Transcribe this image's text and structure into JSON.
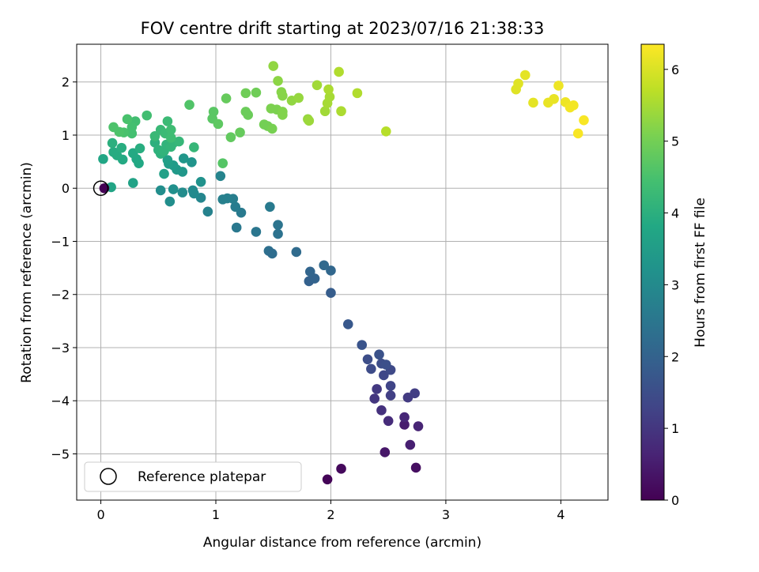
{
  "chart_data": {
    "type": "scatter",
    "title": "FOV centre drift starting at 2023/07/16 21:38:33",
    "xlabel": "Angular distance from reference (arcmin)",
    "ylabel": "Rotation from reference (arcmin)",
    "xlim": [
      -0.21,
      4.41
    ],
    "ylim": [
      -5.87,
      2.71
    ],
    "xticks": [
      0,
      1,
      2,
      3,
      4
    ],
    "yticks": [
      -5,
      -4,
      -3,
      -2,
      -1,
      0,
      1,
      2
    ],
    "grid": true,
    "legend": {
      "placement": "lower-left",
      "entries": [
        "Reference platepar"
      ]
    },
    "colorbar": {
      "label": "Hours from first FF file",
      "range": [
        0,
        6.35
      ],
      "ticks": [
        0,
        1,
        2,
        3,
        4,
        5,
        6
      ],
      "colormap": "viridis"
    },
    "reference_point": {
      "x": 0,
      "y": 0
    },
    "points": [
      {
        "x": 1.97,
        "y": -5.48,
        "h": 0.05
      },
      {
        "x": 2.09,
        "y": -5.28,
        "h": 0.15
      },
      {
        "x": 2.74,
        "y": -5.26,
        "h": 0.25
      },
      {
        "x": 2.47,
        "y": -4.97,
        "h": 0.4
      },
      {
        "x": 2.69,
        "y": -4.83,
        "h": 0.55
      },
      {
        "x": 2.64,
        "y": -4.45,
        "h": 0.5
      },
      {
        "x": 2.76,
        "y": -4.48,
        "h": 0.65
      },
      {
        "x": 2.5,
        "y": -4.38,
        "h": 0.8
      },
      {
        "x": 2.44,
        "y": -4.18,
        "h": 0.9
      },
      {
        "x": 2.64,
        "y": -4.31,
        "h": 0.7
      },
      {
        "x": 2.38,
        "y": -3.96,
        "h": 1.0
      },
      {
        "x": 2.4,
        "y": -3.78,
        "h": 1.05
      },
      {
        "x": 2.67,
        "y": -3.94,
        "h": 1.1
      },
      {
        "x": 2.73,
        "y": -3.86,
        "h": 1.15
      },
      {
        "x": 2.52,
        "y": -3.9,
        "h": 1.2
      },
      {
        "x": 2.52,
        "y": -3.72,
        "h": 1.3
      },
      {
        "x": 2.46,
        "y": -3.52,
        "h": 1.35
      },
      {
        "x": 2.52,
        "y": -3.42,
        "h": 1.4
      },
      {
        "x": 2.35,
        "y": -3.4,
        "h": 1.45
      },
      {
        "x": 2.44,
        "y": -3.3,
        "h": 1.5
      },
      {
        "x": 2.32,
        "y": -3.22,
        "h": 1.5
      },
      {
        "x": 2.48,
        "y": -3.32,
        "h": 1.55
      },
      {
        "x": 2.42,
        "y": -3.13,
        "h": 1.6
      },
      {
        "x": 2.27,
        "y": -2.95,
        "h": 1.65
      },
      {
        "x": 2.15,
        "y": -2.56,
        "h": 1.75
      },
      {
        "x": 2.0,
        "y": -1.97,
        "h": 1.85
      },
      {
        "x": 1.81,
        "y": -1.75,
        "h": 1.95
      },
      {
        "x": 1.86,
        "y": -1.7,
        "h": 2.0
      },
      {
        "x": 1.82,
        "y": -1.57,
        "h": 2.05
      },
      {
        "x": 2.0,
        "y": -1.55,
        "h": 2.1
      },
      {
        "x": 1.94,
        "y": -1.45,
        "h": 2.15
      },
      {
        "x": 1.7,
        "y": -1.2,
        "h": 2.2
      },
      {
        "x": 1.46,
        "y": -1.18,
        "h": 2.3
      },
      {
        "x": 1.49,
        "y": -1.23,
        "h": 2.25
      },
      {
        "x": 1.54,
        "y": -0.86,
        "h": 2.4
      },
      {
        "x": 1.54,
        "y": -0.69,
        "h": 2.45
      },
      {
        "x": 1.35,
        "y": -0.82,
        "h": 2.5
      },
      {
        "x": 1.18,
        "y": -0.74,
        "h": 2.55
      },
      {
        "x": 1.22,
        "y": -0.46,
        "h": 2.6
      },
      {
        "x": 1.17,
        "y": -0.35,
        "h": 2.65
      },
      {
        "x": 1.47,
        "y": -0.35,
        "h": 2.6
      },
      {
        "x": 1.15,
        "y": -0.2,
        "h": 2.7
      },
      {
        "x": 1.1,
        "y": -0.19,
        "h": 2.75
      },
      {
        "x": 1.06,
        "y": -0.21,
        "h": 2.75
      },
      {
        "x": 0.93,
        "y": -0.44,
        "h": 2.8
      },
      {
        "x": 1.04,
        "y": 0.23,
        "h": 2.85
      },
      {
        "x": 0.87,
        "y": -0.18,
        "h": 2.9
      },
      {
        "x": 0.8,
        "y": -0.04,
        "h": 3.0
      },
      {
        "x": 0.81,
        "y": -0.1,
        "h": 3.0
      },
      {
        "x": 0.71,
        "y": -0.08,
        "h": 3.05
      },
      {
        "x": 0.6,
        "y": -0.25,
        "h": 3.1
      },
      {
        "x": 0.52,
        "y": -0.04,
        "h": 3.1
      },
      {
        "x": 0.63,
        "y": -0.02,
        "h": 3.15
      },
      {
        "x": 0.87,
        "y": 0.12,
        "h": 3.2
      },
      {
        "x": 0.79,
        "y": 0.49,
        "h": 3.25
      },
      {
        "x": 0.72,
        "y": 0.56,
        "h": 3.3
      },
      {
        "x": 0.71,
        "y": 0.31,
        "h": 3.35
      },
      {
        "x": 0.66,
        "y": 0.35,
        "h": 3.4
      },
      {
        "x": 0.63,
        "y": 0.43,
        "h": 3.45
      },
      {
        "x": 0.59,
        "y": 0.46,
        "h": 3.5
      },
      {
        "x": 0.58,
        "y": 0.53,
        "h": 3.55
      },
      {
        "x": 0.55,
        "y": 0.27,
        "h": 3.6
      },
      {
        "x": 0.28,
        "y": 0.1,
        "h": 3.65
      },
      {
        "x": 0.09,
        "y": 0.02,
        "h": 3.7
      },
      {
        "x": 0.02,
        "y": 0.55,
        "h": 3.75
      },
      {
        "x": 0.33,
        "y": 0.47,
        "h": 3.8
      },
      {
        "x": 0.31,
        "y": 0.55,
        "h": 3.8
      },
      {
        "x": 0.28,
        "y": 0.66,
        "h": 3.85
      },
      {
        "x": 0.19,
        "y": 0.54,
        "h": 3.85
      },
      {
        "x": 0.14,
        "y": 0.62,
        "h": 3.9
      },
      {
        "x": 0.11,
        "y": 0.68,
        "h": 3.9
      },
      {
        "x": 0.18,
        "y": 0.76,
        "h": 3.95
      },
      {
        "x": 0.34,
        "y": 0.75,
        "h": 3.95
      },
      {
        "x": 0.1,
        "y": 0.85,
        "h": 4.0
      },
      {
        "x": 0.47,
        "y": 0.86,
        "h": 4.0
      },
      {
        "x": 0.5,
        "y": 0.72,
        "h": 4.05
      },
      {
        "x": 0.52,
        "y": 0.65,
        "h": 4.05
      },
      {
        "x": 0.55,
        "y": 0.7,
        "h": 4.1
      },
      {
        "x": 0.57,
        "y": 0.82,
        "h": 4.1
      },
      {
        "x": 0.61,
        "y": 0.78,
        "h": 4.15
      },
      {
        "x": 0.63,
        "y": 0.85,
        "h": 4.15
      },
      {
        "x": 0.68,
        "y": 0.88,
        "h": 4.2
      },
      {
        "x": 0.81,
        "y": 0.77,
        "h": 4.2
      },
      {
        "x": 0.47,
        "y": 0.98,
        "h": 4.25
      },
      {
        "x": 0.52,
        "y": 1.1,
        "h": 4.25
      },
      {
        "x": 0.56,
        "y": 1.03,
        "h": 4.3
      },
      {
        "x": 0.58,
        "y": 1.26,
        "h": 4.3
      },
      {
        "x": 0.61,
        "y": 1.1,
        "h": 4.35
      },
      {
        "x": 0.61,
        "y": 0.95,
        "h": 4.35
      },
      {
        "x": 0.4,
        "y": 1.37,
        "h": 4.4
      },
      {
        "x": 0.3,
        "y": 1.26,
        "h": 4.4
      },
      {
        "x": 0.27,
        "y": 1.15,
        "h": 4.45
      },
      {
        "x": 0.27,
        "y": 1.03,
        "h": 4.45
      },
      {
        "x": 0.23,
        "y": 1.3,
        "h": 4.5
      },
      {
        "x": 0.2,
        "y": 1.05,
        "h": 4.5
      },
      {
        "x": 0.16,
        "y": 1.06,
        "h": 4.55
      },
      {
        "x": 0.11,
        "y": 1.15,
        "h": 4.55
      },
      {
        "x": 0.77,
        "y": 1.57,
        "h": 4.6
      },
      {
        "x": 1.06,
        "y": 0.47,
        "h": 4.65
      },
      {
        "x": 0.97,
        "y": 1.31,
        "h": 4.7
      },
      {
        "x": 0.98,
        "y": 1.44,
        "h": 4.7
      },
      {
        "x": 1.02,
        "y": 1.21,
        "h": 4.75
      },
      {
        "x": 1.13,
        "y": 0.96,
        "h": 4.8
      },
      {
        "x": 1.21,
        "y": 1.05,
        "h": 4.85
      },
      {
        "x": 1.09,
        "y": 1.69,
        "h": 4.85
      },
      {
        "x": 1.26,
        "y": 1.44,
        "h": 4.9
      },
      {
        "x": 1.28,
        "y": 1.38,
        "h": 4.9
      },
      {
        "x": 1.26,
        "y": 1.79,
        "h": 4.95
      },
      {
        "x": 1.35,
        "y": 1.8,
        "h": 4.95
      },
      {
        "x": 1.42,
        "y": 1.2,
        "h": 5.0
      },
      {
        "x": 1.45,
        "y": 1.17,
        "h": 5.0
      },
      {
        "x": 1.49,
        "y": 1.12,
        "h": 5.05
      },
      {
        "x": 1.48,
        "y": 1.5,
        "h": 5.1
      },
      {
        "x": 1.53,
        "y": 1.48,
        "h": 5.1
      },
      {
        "x": 1.58,
        "y": 1.38,
        "h": 5.15
      },
      {
        "x": 1.58,
        "y": 1.44,
        "h": 5.15
      },
      {
        "x": 1.58,
        "y": 1.74,
        "h": 5.2
      },
      {
        "x": 1.57,
        "y": 1.81,
        "h": 5.2
      },
      {
        "x": 1.54,
        "y": 2.02,
        "h": 5.25
      },
      {
        "x": 1.5,
        "y": 2.3,
        "h": 5.3
      },
      {
        "x": 1.66,
        "y": 1.65,
        "h": 5.3
      },
      {
        "x": 1.72,
        "y": 1.7,
        "h": 5.35
      },
      {
        "x": 1.8,
        "y": 1.3,
        "h": 5.35
      },
      {
        "x": 1.81,
        "y": 1.27,
        "h": 5.4
      },
      {
        "x": 1.88,
        "y": 1.94,
        "h": 5.45
      },
      {
        "x": 1.95,
        "y": 1.45,
        "h": 5.45
      },
      {
        "x": 1.97,
        "y": 1.6,
        "h": 5.5
      },
      {
        "x": 1.99,
        "y": 1.72,
        "h": 5.5
      },
      {
        "x": 1.98,
        "y": 1.86,
        "h": 5.55
      },
      {
        "x": 2.09,
        "y": 1.45,
        "h": 5.55
      },
      {
        "x": 2.07,
        "y": 2.19,
        "h": 5.6
      },
      {
        "x": 2.23,
        "y": 1.79,
        "h": 5.6
      },
      {
        "x": 2.48,
        "y": 1.07,
        "h": 5.65
      },
      {
        "x": 3.61,
        "y": 1.86,
        "h": 6.05
      },
      {
        "x": 3.63,
        "y": 1.97,
        "h": 6.05
      },
      {
        "x": 3.69,
        "y": 2.13,
        "h": 6.1
      },
      {
        "x": 3.76,
        "y": 1.61,
        "h": 6.1
      },
      {
        "x": 3.89,
        "y": 1.61,
        "h": 6.15
      },
      {
        "x": 3.94,
        "y": 1.68,
        "h": 6.15
      },
      {
        "x": 3.98,
        "y": 1.93,
        "h": 6.2
      },
      {
        "x": 4.04,
        "y": 1.62,
        "h": 6.2
      },
      {
        "x": 4.08,
        "y": 1.52,
        "h": 6.25
      },
      {
        "x": 4.11,
        "y": 1.56,
        "h": 6.25
      },
      {
        "x": 4.15,
        "y": 1.03,
        "h": 6.3
      },
      {
        "x": 4.2,
        "y": 1.28,
        "h": 6.3
      },
      {
        "x": 0.03,
        "y": 0.0,
        "h": 0.0
      }
    ]
  }
}
